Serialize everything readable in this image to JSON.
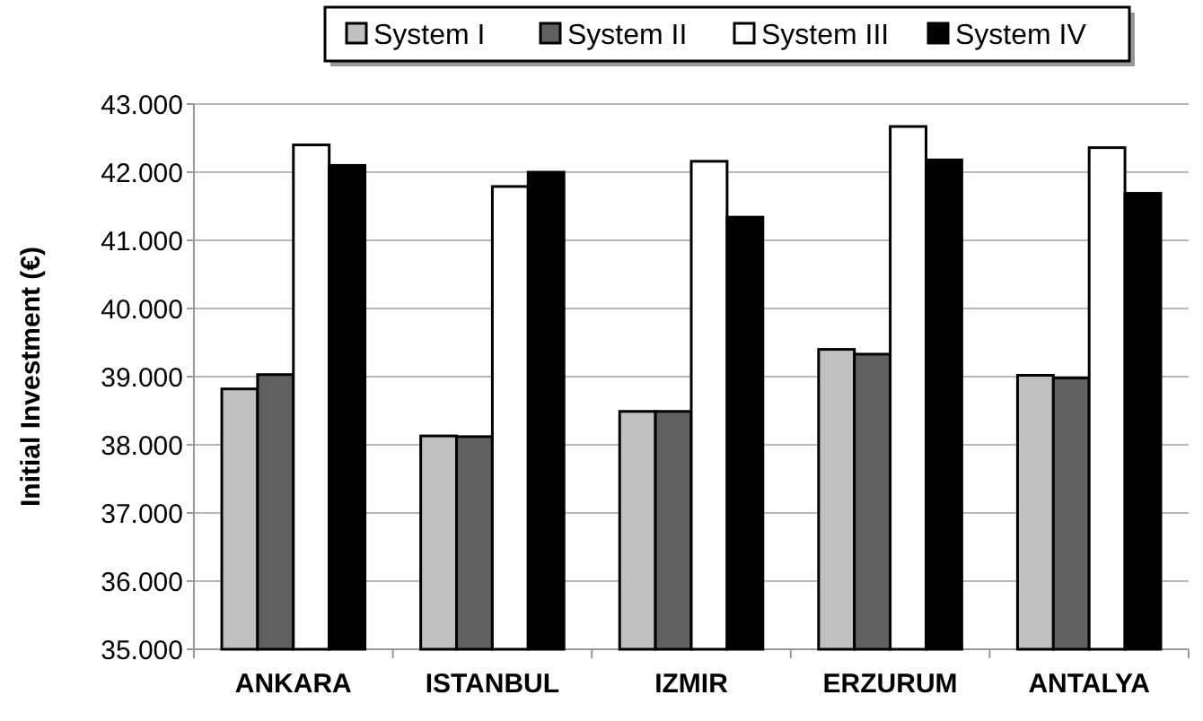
{
  "chart_data": {
    "type": "bar",
    "ylabel": "Initial Investment (€)",
    "categories": [
      "ANKARA",
      "ISTANBUL",
      "IZMIR",
      "ERZURUM",
      "ANTALYA"
    ],
    "series": [
      {
        "name": "System I",
        "color": "#c0c0c0",
        "values": [
          38820,
          38130,
          38490,
          39400,
          39020
        ]
      },
      {
        "name": "System II",
        "color": "#606060",
        "values": [
          39030,
          38120,
          38490,
          39330,
          38980
        ]
      },
      {
        "name": "System III",
        "color": "#ffffff",
        "values": [
          42400,
          41790,
          42160,
          42670,
          42360
        ]
      },
      {
        "name": "System IV",
        "color": "#000000",
        "values": [
          42100,
          42000,
          41340,
          42180,
          41690
        ]
      }
    ],
    "ylim": [
      35000,
      43000
    ],
    "yticks": [
      {
        "value": 35000,
        "label": "35.000"
      },
      {
        "value": 36000,
        "label": "36.000"
      },
      {
        "value": 37000,
        "label": "37.000"
      },
      {
        "value": 38000,
        "label": "38.000"
      },
      {
        "value": 39000,
        "label": "39.000"
      },
      {
        "value": 40000,
        "label": "40.000"
      },
      {
        "value": 41000,
        "label": "41.000"
      },
      {
        "value": 42000,
        "label": "42.000"
      },
      {
        "value": 43000,
        "label": "43.000"
      }
    ],
    "grid": "y",
    "legend": "top"
  }
}
